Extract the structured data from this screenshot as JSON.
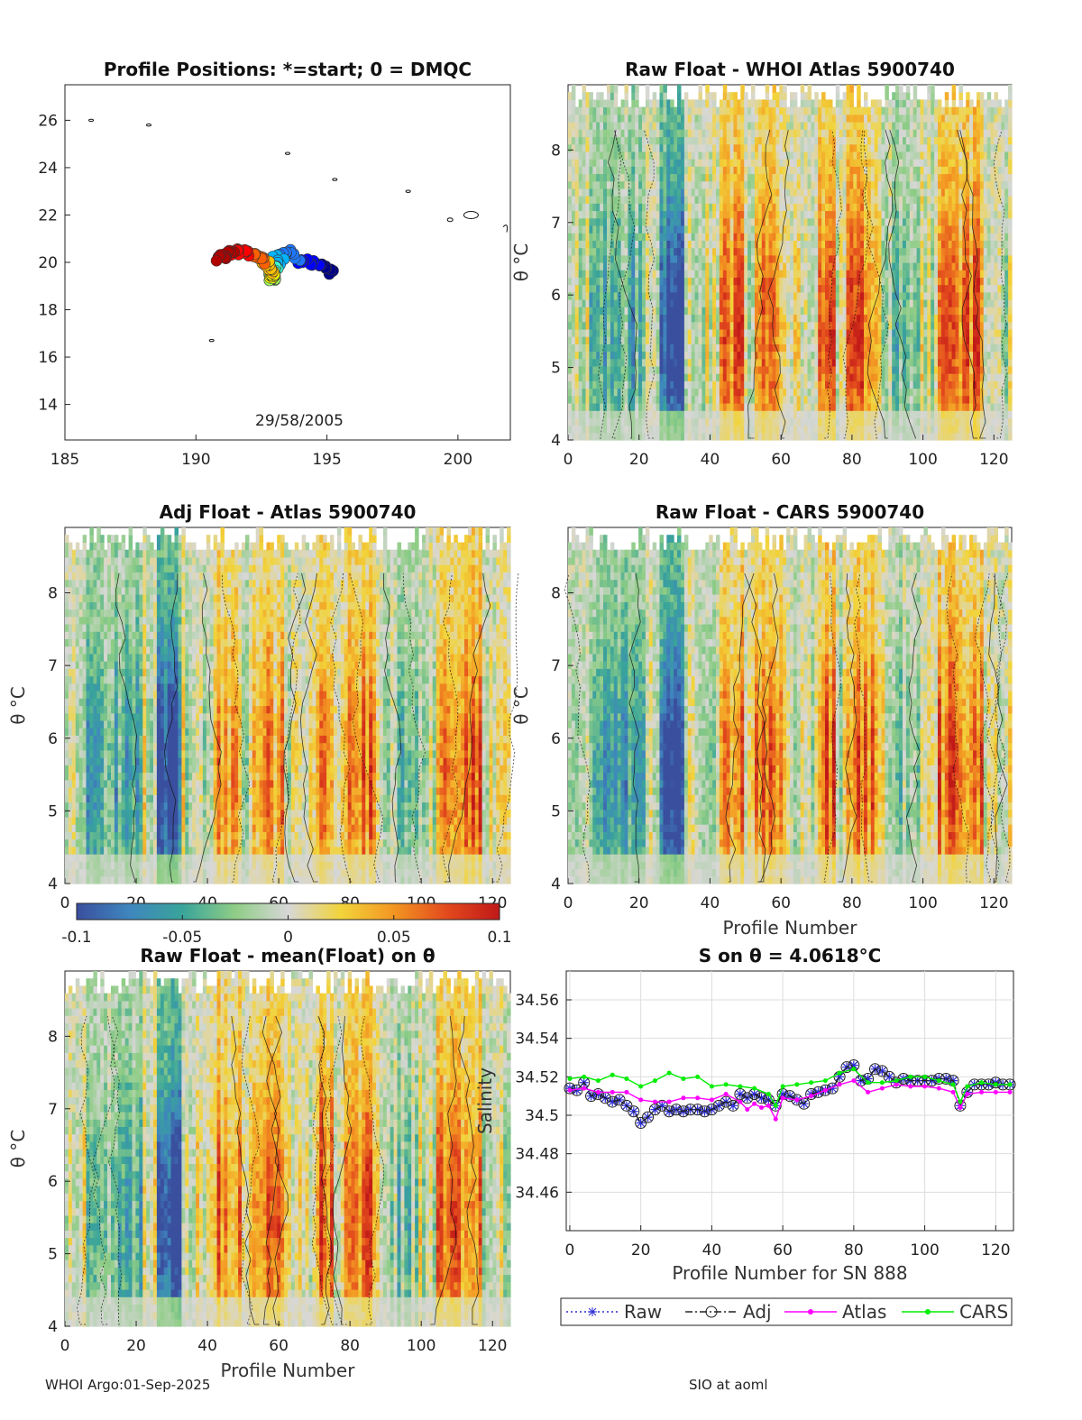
{
  "footer": {
    "left": "WHOI Argo:01-Sep-2025",
    "right": "SIO at aoml"
  },
  "chart_data": [
    {
      "id": "positions",
      "type": "scatter",
      "title": "Profile Positions: *=start; 0 = DMQC",
      "xlim": [
        185,
        202
      ],
      "ylim": [
        12.5,
        27.5
      ],
      "xticks": [
        "185",
        "190",
        "195",
        "200"
      ],
      "yticks": [
        "14",
        "16",
        "18",
        "20",
        "22",
        "24",
        "26"
      ],
      "annotation": "29/58/2005",
      "colors": [
        "#00008b",
        "#0000ff",
        "#1e78ff",
        "#00b4ff",
        "#40ffd0",
        "#a0ff60",
        "#ffff00",
        "#ffc000",
        "#ff6000",
        "#ff0000",
        "#b00000"
      ]
    },
    {
      "id": "raw-atlas",
      "type": "heatmap",
      "title": "Raw Float - WHOI Atlas  5900740",
      "xlabel": "",
      "ylabel": "θ °C",
      "xlim": [
        0,
        125
      ],
      "ylim": [
        4,
        8.9
      ],
      "xticks": [
        "0",
        "20",
        "40",
        "60",
        "80",
        "100",
        "120"
      ],
      "yticks": [
        "4",
        "5",
        "6",
        "7",
        "8"
      ]
    },
    {
      "id": "adj-atlas",
      "type": "heatmap",
      "title": "Adj Float - Atlas  5900740",
      "xlabel": "",
      "ylabel": "θ °C",
      "xlim": [
        0,
        125
      ],
      "ylim": [
        4,
        8.9
      ],
      "xticks": [
        "0",
        "20",
        "40",
        "60",
        "80",
        "100",
        "120"
      ],
      "yticks": [
        "4",
        "5",
        "6",
        "7",
        "8"
      ]
    },
    {
      "id": "raw-cars",
      "type": "heatmap",
      "title": "Raw Float - CARS  5900740",
      "xlabel": "Profile Number",
      "ylabel": "θ °C",
      "xlim": [
        0,
        125
      ],
      "ylim": [
        4,
        8.9
      ],
      "xticks": [
        "0",
        "20",
        "40",
        "60",
        "80",
        "100",
        "120"
      ],
      "yticks": [
        "4",
        "5",
        "6",
        "7",
        "8"
      ]
    },
    {
      "id": "raw-mean",
      "type": "heatmap",
      "title": "Raw Float - mean(Float) on θ",
      "xlabel": "Profile Number",
      "ylabel": "θ °C",
      "xlim": [
        0,
        125
      ],
      "ylim": [
        4,
        8.9
      ],
      "xticks": [
        "0",
        "20",
        "40",
        "60",
        "80",
        "100",
        "120"
      ],
      "yticks": [
        "4",
        "5",
        "6",
        "7",
        "8"
      ]
    },
    {
      "id": "colorbar",
      "type": "colorbar",
      "range": [
        -0.1,
        0.1
      ],
      "ticks": [
        "-0.1",
        "-0.05",
        "0",
        "0.05",
        "0.1"
      ],
      "stops": [
        "#3a4f9e",
        "#3f86be",
        "#39a49a",
        "#8fcd86",
        "#d7d7d7",
        "#f2d43a",
        "#f39622",
        "#e34a1d",
        "#c01818"
      ]
    },
    {
      "id": "salinity",
      "type": "line",
      "title": "S on θ = 4.0618°C",
      "xlabel": "Profile Number for SN 888",
      "ylabel": "Salinity",
      "xlim": [
        -1,
        125
      ],
      "ylim": [
        34.44,
        34.575
      ],
      "xticks": [
        "0",
        "20",
        "40",
        "60",
        "80",
        "100",
        "120"
      ],
      "yticks": [
        "34.46",
        "34.48",
        "34.5",
        "34.52",
        "34.54",
        "34.56"
      ],
      "legend": [
        "Raw",
        "Adj",
        "Atlas",
        "CARS"
      ],
      "legend_position": "below",
      "series": [
        {
          "name": "Raw",
          "color": "#2d2dd6",
          "x": [
            0,
            2,
            4,
            6,
            8,
            10,
            12,
            14,
            16,
            18,
            20,
            22,
            24,
            26,
            28,
            30,
            32,
            34,
            36,
            38,
            40,
            42,
            44,
            46,
            48,
            50,
            52,
            54,
            56,
            58,
            60,
            62,
            64,
            66,
            68,
            70,
            72,
            74,
            76,
            78,
            80,
            82,
            84,
            86,
            88,
            90,
            92,
            94,
            96,
            98,
            100,
            102,
            104,
            106,
            108,
            110,
            112,
            114,
            116,
            118,
            120,
            122,
            124
          ],
          "values": [
            34.514,
            34.513,
            34.517,
            34.51,
            34.511,
            34.509,
            34.507,
            34.508,
            34.505,
            34.502,
            34.496,
            34.499,
            34.503,
            34.505,
            34.502,
            34.503,
            34.502,
            34.503,
            34.503,
            34.502,
            34.503,
            34.505,
            34.507,
            34.505,
            34.511,
            34.509,
            34.511,
            34.509,
            34.508,
            34.505,
            34.511,
            34.51,
            34.508,
            34.506,
            34.511,
            34.512,
            34.513,
            34.514,
            34.52,
            34.525,
            34.526,
            34.518,
            34.519,
            34.524,
            34.523,
            34.52,
            34.517,
            34.519,
            34.518,
            34.518,
            34.518,
            34.518,
            34.519,
            34.519,
            34.518,
            34.505,
            34.512,
            34.516,
            34.516,
            34.516,
            34.517,
            34.516,
            34.516
          ]
        },
        {
          "name": "Adj",
          "color": "#2d2dd6",
          "x": [
            0,
            2,
            4,
            6,
            8,
            10,
            12,
            14,
            16,
            18,
            20,
            22,
            24,
            26,
            28,
            30,
            32,
            34,
            36,
            38,
            40,
            42,
            44,
            46,
            48,
            50,
            52,
            54,
            56,
            58,
            60,
            62,
            64,
            66,
            68,
            70,
            72,
            74,
            76,
            78,
            80,
            82,
            84,
            86,
            88,
            90,
            92,
            94,
            96,
            98,
            100,
            102,
            104,
            106,
            108,
            110,
            112,
            114,
            116,
            118,
            120,
            122,
            124
          ],
          "values": [
            34.514,
            34.513,
            34.517,
            34.51,
            34.511,
            34.509,
            34.507,
            34.508,
            34.505,
            34.502,
            34.496,
            34.499,
            34.503,
            34.505,
            34.502,
            34.503,
            34.502,
            34.503,
            34.503,
            34.502,
            34.503,
            34.505,
            34.507,
            34.505,
            34.511,
            34.509,
            34.511,
            34.509,
            34.508,
            34.505,
            34.511,
            34.51,
            34.508,
            34.506,
            34.511,
            34.512,
            34.513,
            34.514,
            34.52,
            34.525,
            34.526,
            34.518,
            34.519,
            34.524,
            34.523,
            34.52,
            34.517,
            34.519,
            34.518,
            34.518,
            34.518,
            34.518,
            34.519,
            34.519,
            34.518,
            34.505,
            34.512,
            34.516,
            34.516,
            34.516,
            34.517,
            34.516,
            34.516
          ]
        },
        {
          "name": "Atlas",
          "color": "#ff00ff",
          "x": [
            0,
            4,
            8,
            12,
            16,
            20,
            24,
            28,
            32,
            36,
            40,
            44,
            48,
            50,
            52,
            54,
            56,
            58,
            60,
            64,
            68,
            72,
            76,
            80,
            84,
            88,
            92,
            96,
            100,
            104,
            108,
            110,
            112,
            116,
            120,
            124
          ],
          "values": [
            34.513,
            34.514,
            34.512,
            34.512,
            34.512,
            34.508,
            34.507,
            34.507,
            34.509,
            34.509,
            34.508,
            34.511,
            34.507,
            34.503,
            34.506,
            34.504,
            34.505,
            34.498,
            34.509,
            34.508,
            34.51,
            34.513,
            34.516,
            34.518,
            34.512,
            34.514,
            34.516,
            34.515,
            34.515,
            34.514,
            34.512,
            34.504,
            34.511,
            34.512,
            34.512,
            34.512
          ]
        },
        {
          "name": "CARS",
          "color": "#00ee00",
          "x": [
            0,
            4,
            8,
            12,
            16,
            20,
            24,
            28,
            32,
            36,
            40,
            44,
            48,
            52,
            56,
            58,
            60,
            64,
            68,
            72,
            76,
            80,
            84,
            88,
            92,
            96,
            100,
            104,
            108,
            110,
            112,
            116,
            120,
            124
          ],
          "values": [
            34.519,
            34.52,
            34.518,
            34.521,
            34.519,
            34.515,
            34.518,
            34.522,
            34.519,
            34.52,
            34.515,
            34.516,
            34.515,
            34.514,
            34.511,
            34.505,
            34.515,
            34.516,
            34.517,
            34.518,
            34.522,
            34.524,
            34.517,
            34.517,
            34.518,
            34.52,
            34.52,
            34.518,
            34.516,
            34.507,
            34.515,
            34.517,
            34.516,
            34.516
          ]
        }
      ]
    }
  ]
}
